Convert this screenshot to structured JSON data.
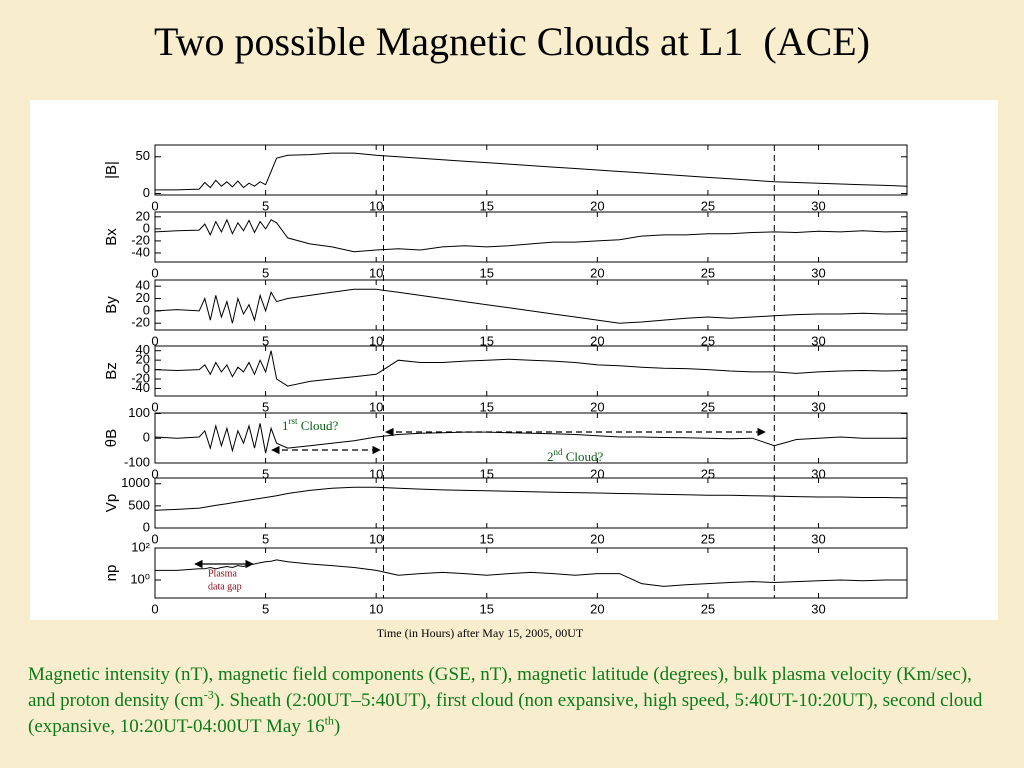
{
  "title": "Two possible Magnetic Clouds at L1  (ACE)",
  "xlabel": "Time (in Hours) after May 15, 2005, 00UT",
  "caption": [
    "Magnetic intensity (nT), magnetic field components (GSE, nT), magnetic latitude (degrees), bulk plasma velocity (Km/sec), and proton density (cm",
    "-3",
    "). Sheath (2:00UT–5:40UT), first cloud (non expansive, high speed, 5:40UT-10:20UT), second cloud (expansive, 10:20UT-04:00UT May 16",
    "th",
    ")"
  ],
  "boundaries": [
    10.33,
    28
  ],
  "chart_data": [
    {
      "type": "line",
      "ylabel": "|B|",
      "xlim": [
        0,
        34
      ],
      "xticks": [
        0,
        5,
        10,
        15,
        20,
        25,
        30
      ],
      "ylim": [
        -2,
        66
      ],
      "yticks": [
        0,
        50
      ],
      "x": [
        0,
        1,
        2,
        2.25,
        2.5,
        2.75,
        3,
        3.25,
        3.5,
        3.75,
        4,
        4.25,
        4.5,
        4.75,
        5,
        5.25,
        5.5,
        6,
        7,
        8,
        9,
        10,
        11,
        12,
        13,
        14,
        15,
        16,
        17,
        18,
        19,
        20,
        21,
        22,
        23,
        24,
        25,
        26,
        27,
        28,
        29,
        30,
        31,
        32,
        33,
        34
      ],
      "values": [
        5,
        5,
        6,
        15,
        8,
        18,
        10,
        16,
        9,
        17,
        8,
        14,
        10,
        16,
        12,
        30,
        48,
        52,
        53,
        55,
        55,
        52,
        50,
        48,
        46,
        44,
        42,
        40,
        38,
        36,
        34,
        32,
        30,
        28,
        26,
        24,
        22,
        20,
        18,
        16,
        15,
        14,
        13,
        12,
        11,
        10
      ]
    },
    {
      "type": "line",
      "ylabel": "Bx",
      "xlim": [
        0,
        34
      ],
      "xticks": [
        0,
        5,
        10,
        15,
        20,
        25,
        30
      ],
      "ylim": [
        -55,
        28
      ],
      "yticks": [
        20,
        0,
        -20,
        -40
      ],
      "x": [
        0,
        1,
        2,
        2.25,
        2.5,
        2.75,
        3,
        3.25,
        3.5,
        3.75,
        4,
        4.25,
        4.5,
        4.75,
        5,
        5.25,
        5.5,
        6,
        7,
        8,
        9,
        10,
        11,
        12,
        13,
        14,
        15,
        16,
        17,
        18,
        19,
        20,
        21,
        22,
        23,
        24,
        25,
        26,
        27,
        28,
        29,
        30,
        31,
        32,
        33,
        34
      ],
      "values": [
        -5,
        -3,
        -2,
        8,
        -10,
        12,
        -5,
        15,
        -8,
        10,
        -3,
        14,
        -6,
        12,
        0,
        15,
        10,
        -15,
        -25,
        -30,
        -38,
        -35,
        -33,
        -35,
        -30,
        -28,
        -30,
        -28,
        -25,
        -22,
        -22,
        -20,
        -18,
        -12,
        -10,
        -10,
        -8,
        -8,
        -6,
        -5,
        -6,
        -4,
        -5,
        -3,
        -5,
        -4
      ]
    },
    {
      "type": "line",
      "ylabel": "By",
      "xlim": [
        0,
        34
      ],
      "xticks": [
        0,
        5,
        10,
        15,
        20,
        25,
        30
      ],
      "ylim": [
        -31,
        50
      ],
      "yticks": [
        40,
        20,
        0,
        -20
      ],
      "x": [
        0,
        1,
        2,
        2.25,
        2.5,
        2.75,
        3,
        3.25,
        3.5,
        3.75,
        4,
        4.25,
        4.5,
        4.75,
        5,
        5.25,
        5.5,
        6,
        7,
        8,
        9,
        10,
        11,
        12,
        13,
        14,
        15,
        16,
        17,
        18,
        19,
        20,
        21,
        22,
        23,
        24,
        25,
        26,
        27,
        28,
        29,
        30,
        31,
        32,
        33,
        34
      ],
      "values": [
        0,
        2,
        0,
        20,
        -15,
        25,
        -10,
        15,
        -20,
        20,
        -5,
        10,
        -15,
        25,
        0,
        30,
        15,
        20,
        25,
        30,
        35,
        35,
        30,
        25,
        20,
        15,
        10,
        5,
        0,
        -5,
        -10,
        -15,
        -20,
        -18,
        -15,
        -12,
        -10,
        -12,
        -10,
        -8,
        -6,
        -5,
        -5,
        -4,
        -5,
        -5
      ]
    },
    {
      "type": "line",
      "ylabel": "Bz",
      "xlim": [
        0,
        34
      ],
      "xticks": [
        0,
        5,
        10,
        15,
        20,
        25,
        30
      ],
      "ylim": [
        -56,
        50
      ],
      "yticks": [
        40,
        20,
        0,
        -20,
        -40
      ],
      "x": [
        0,
        1,
        2,
        2.25,
        2.5,
        2.75,
        3,
        3.25,
        3.5,
        3.75,
        4,
        4.25,
        4.5,
        4.75,
        5,
        5.25,
        5.5,
        6,
        7,
        8,
        9,
        10,
        11,
        12,
        13,
        14,
        15,
        16,
        17,
        18,
        19,
        20,
        21,
        22,
        23,
        24,
        25,
        26,
        27,
        28,
        29,
        30,
        31,
        32,
        33,
        34
      ],
      "values": [
        0,
        -2,
        0,
        10,
        -10,
        15,
        -5,
        10,
        -15,
        5,
        -5,
        15,
        -10,
        20,
        -5,
        40,
        -20,
        -35,
        -25,
        -20,
        -15,
        -10,
        20,
        15,
        15,
        18,
        20,
        22,
        20,
        18,
        15,
        10,
        8,
        5,
        3,
        2,
        0,
        -3,
        -5,
        -5,
        -8,
        -5,
        -3,
        -2,
        -3,
        -2
      ]
    },
    {
      "type": "line",
      "ylabel": "θB",
      "xlim": [
        0,
        34
      ],
      "xticks": [
        0,
        5,
        10,
        15,
        20,
        25,
        30
      ],
      "ylim": [
        -100,
        102
      ],
      "yticks": [
        100,
        0,
        -100
      ],
      "x": [
        0,
        1,
        2,
        2.25,
        2.5,
        2.75,
        3,
        3.25,
        3.5,
        3.75,
        4,
        4.25,
        4.5,
        4.75,
        5,
        5.25,
        5.5,
        6,
        7,
        8,
        9,
        10,
        11,
        12,
        13,
        14,
        15,
        16,
        17,
        18,
        19,
        20,
        21,
        22,
        23,
        24,
        25,
        26,
        27,
        28,
        29,
        30,
        31,
        32,
        33,
        34
      ],
      "values": [
        5,
        0,
        5,
        30,
        -40,
        50,
        -30,
        40,
        -50,
        30,
        -20,
        50,
        -40,
        60,
        -60,
        40,
        -20,
        -40,
        -30,
        -20,
        -10,
        5,
        15,
        20,
        22,
        25,
        25,
        22,
        20,
        18,
        15,
        10,
        5,
        5,
        3,
        2,
        0,
        -2,
        0,
        -30,
        -5,
        0,
        5,
        0,
        0,
        0
      ],
      "annotations": [
        [
          "1",
          "rst",
          " Cloud?"
        ],
        [
          "2",
          "nd",
          " Cloud?"
        ]
      ]
    },
    {
      "type": "line",
      "ylabel": "Vp",
      "xlim": [
        0,
        34
      ],
      "xticks": [
        0,
        5,
        10,
        15,
        20,
        25,
        30
      ],
      "ylim": [
        0,
        1130
      ],
      "yticks": [
        1000,
        500,
        0
      ],
      "x": [
        0,
        1,
        2,
        2.25,
        2.5,
        2.75,
        3,
        3.25,
        3.5,
        3.75,
        4,
        4.25,
        4.5,
        4.75,
        5,
        5.25,
        5.5,
        6,
        7,
        8,
        9,
        10,
        11,
        12,
        13,
        14,
        15,
        16,
        17,
        18,
        19,
        20,
        21,
        22,
        23,
        24,
        25,
        26,
        27,
        28,
        29,
        30,
        31,
        32,
        33,
        34
      ],
      "values": [
        400,
        420,
        450,
        470,
        490,
        510,
        530,
        550,
        570,
        590,
        610,
        630,
        650,
        670,
        690,
        710,
        730,
        780,
        850,
        900,
        920,
        920,
        900,
        880,
        860,
        850,
        840,
        830,
        820,
        810,
        800,
        790,
        780,
        770,
        760,
        750,
        740,
        740,
        730,
        720,
        710,
        700,
        700,
        690,
        690,
        680
      ]
    },
    {
      "type": "line",
      "ylabel": "np",
      "log": true,
      "xlim": [
        0,
        34
      ],
      "xticks": [
        0,
        5,
        10,
        15,
        20,
        25,
        30
      ],
      "ylim": [
        0.075,
        100
      ],
      "yticks": [
        {
          "value": 100,
          "label": "10²"
        },
        {
          "value": 1,
          "label": "10⁰"
        }
      ],
      "x": [
        0,
        1,
        2,
        2.25,
        2.5,
        2.75,
        3,
        3.25,
        3.5,
        3.75,
        4,
        4.25,
        4.5,
        4.75,
        5,
        5.25,
        5.5,
        6,
        7,
        8,
        9,
        10,
        11,
        12,
        13,
        14,
        15,
        16,
        17,
        18,
        19,
        20,
        21,
        22,
        23,
        24,
        25,
        26,
        27,
        28,
        29,
        30,
        31,
        32,
        33,
        34
      ],
      "values": [
        4,
        4,
        5,
        5,
        6,
        5,
        6,
        7,
        6,
        8,
        7,
        9,
        10,
        12,
        14,
        15,
        18,
        14,
        10,
        8,
        6,
        4,
        2,
        2.5,
        3,
        2.5,
        2,
        2.5,
        3,
        2.5,
        2,
        2.5,
        2.5,
        0.6,
        0.4,
        0.5,
        0.6,
        0.7,
        0.8,
        0.7,
        0.8,
        0.9,
        1,
        0.9,
        1,
        1
      ],
      "annotations": [
        [
          "Plasma",
          "data gap"
        ]
      ]
    }
  ]
}
